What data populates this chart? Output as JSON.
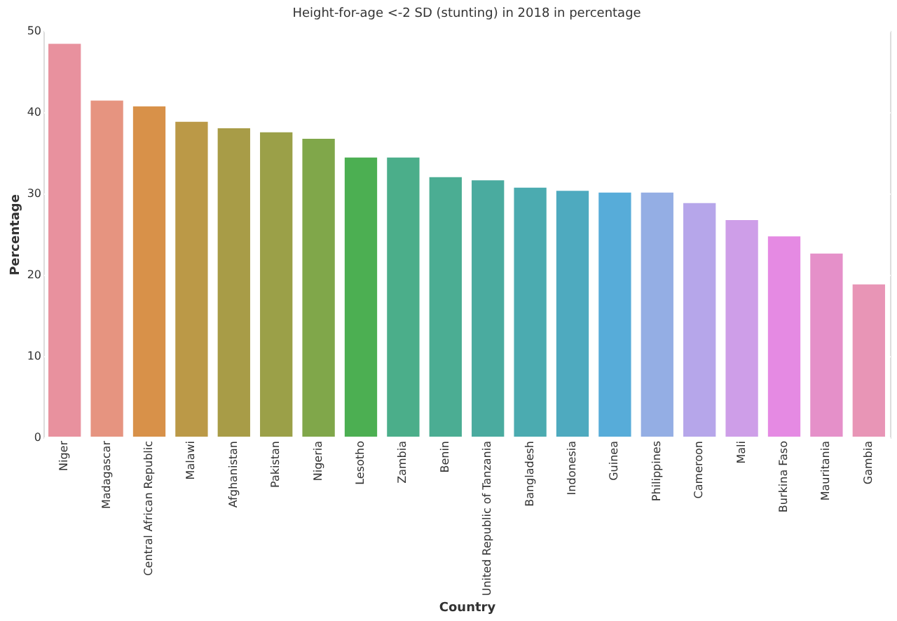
{
  "chart_data": {
    "type": "bar",
    "title": "Height-for-age <-2 SD (stunting) in 2018 in percentage",
    "xlabel": "Country",
    "ylabel": "Percentage",
    "categories": [
      "Niger",
      "Madagascar",
      "Central African Republic",
      "Malawi",
      "Afghanistan",
      "Pakistan",
      "Nigeria",
      "Lesotho",
      "Zambia",
      "Benin",
      "United Republic of Tanzania",
      "Bangladesh",
      "Indonesia",
      "Guinea",
      "Philippines",
      "Cameroon",
      "Mali",
      "Burkina Faso",
      "Mauritania",
      "Gambia"
    ],
    "values": [
      48.5,
      41.5,
      40.8,
      38.9,
      38.1,
      37.6,
      36.8,
      34.5,
      34.5,
      32.1,
      31.7,
      30.8,
      30.4,
      30.2,
      30.2,
      28.9,
      26.8,
      24.8,
      22.7,
      18.9
    ],
    "colors": [
      "#e8919e",
      "#e69480",
      "#d89149",
      "#bb9947",
      "#a89c47",
      "#9ba048",
      "#80a74a",
      "#4caf52",
      "#4bae8a",
      "#4bad93",
      "#4aab9f",
      "#4babb0",
      "#4eaabf",
      "#57acd9",
      "#94aee4",
      "#b6a6ea",
      "#ce9ee8",
      "#e58ae3",
      "#e590c9",
      "#e895b6"
    ],
    "ylim": [
      0,
      50
    ],
    "yticks": [
      0,
      10,
      20,
      30,
      40,
      50
    ],
    "grid": "y"
  }
}
